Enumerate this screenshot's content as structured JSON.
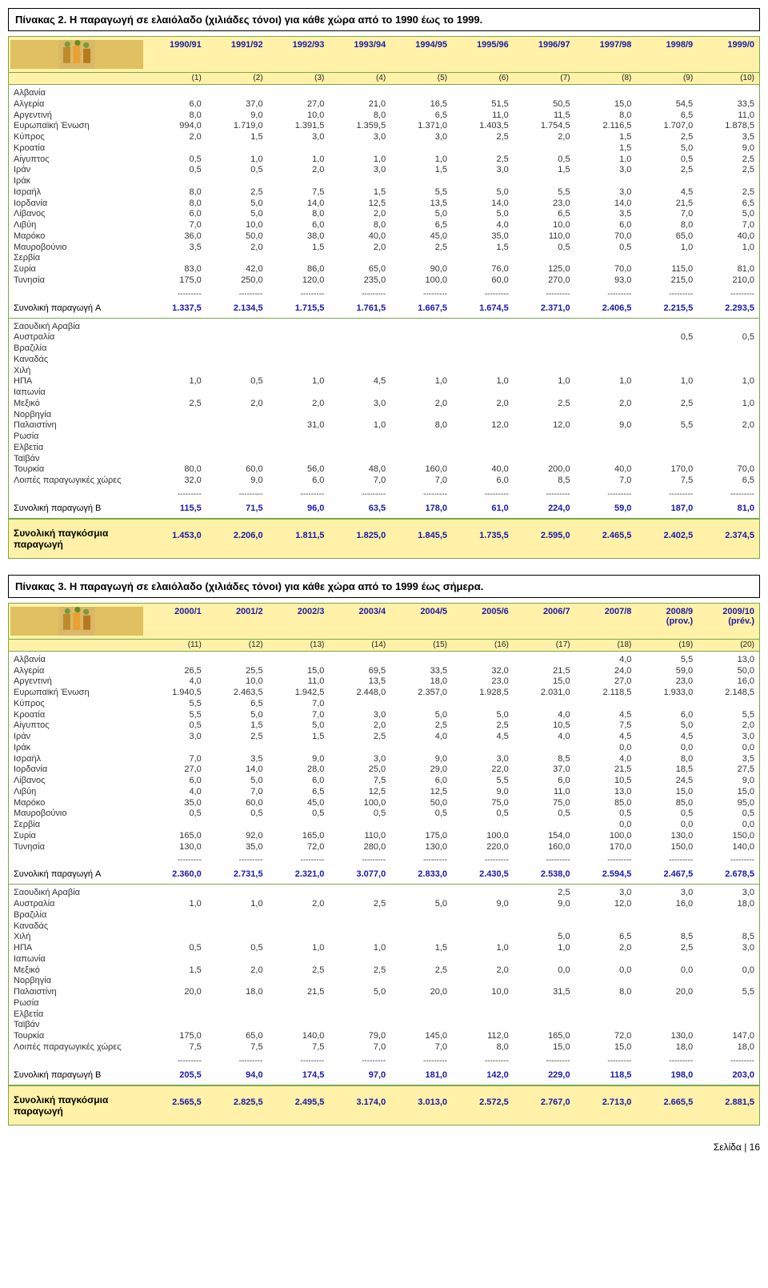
{
  "colors": {
    "header_bg": "#fff2a8",
    "border": "#7aa64a",
    "header_text": "#1a1aaa",
    "subtotal_text": "#1a1aaa"
  },
  "fonts": {
    "base_size": 11,
    "caption_size": 13
  },
  "page_footer": "Σελίδα | 16",
  "dash_str": "---------",
  "table1": {
    "caption": "Πίνακας 2. Η παραγωγή σε ελαιόλαδο (χιλιάδες τόνοι) για κάθε χώρα από το 1990 έως το 1999.",
    "years": [
      "1990/91",
      "1991/92",
      "1992/93",
      "1993/94",
      "1994/95",
      "1995/96",
      "1996/97",
      "1997/98",
      "1998/9",
      "1999/0"
    ],
    "indices": [
      "(1)",
      "(2)",
      "(3)",
      "(4)",
      "(5)",
      "(6)",
      "(7)",
      "(8)",
      "(9)",
      "(10)"
    ],
    "sectionA": [
      {
        "label": "Αλβανία",
        "vals": [
          "",
          "",
          "",
          "",
          "",
          "",
          "",
          "",
          "",
          ""
        ]
      },
      {
        "label": "Αλγερία",
        "vals": [
          "6,0",
          "37,0",
          "27,0",
          "21,0",
          "16,5",
          "51,5",
          "50,5",
          "15,0",
          "54,5",
          "33,5"
        ]
      },
      {
        "label": "Αργεντινή",
        "vals": [
          "8,0",
          "9,0",
          "10,0",
          "8,0",
          "6,5",
          "11,0",
          "11,5",
          "8,0",
          "6,5",
          "11,0"
        ]
      },
      {
        "label": "Ευρωπαϊκή Ένωση",
        "vals": [
          "994,0",
          "1.719,0",
          "1.391,5",
          "1.359,5",
          "1.371,0",
          "1.403,5",
          "1.754,5",
          "2.116,5",
          "1.707,0",
          "1.878,5"
        ]
      },
      {
        "label": "Κύπρος",
        "vals": [
          "2,0",
          "1,5",
          "3,0",
          "3,0",
          "3,0",
          "2,5",
          "2,0",
          "1,5",
          "2,5",
          "3,5"
        ]
      },
      {
        "label": "Κροατία",
        "vals": [
          "",
          "",
          "",
          "",
          "",
          "",
          "",
          "1,5",
          "5,0",
          "9,0"
        ]
      },
      {
        "label": "Αίγυπτος",
        "vals": [
          "0,5",
          "1,0",
          "1,0",
          "1,0",
          "1,0",
          "2,5",
          "0,5",
          "1,0",
          "0,5",
          "2,5"
        ]
      },
      {
        "label": "Ιράν",
        "vals": [
          "0,5",
          "0,5",
          "2,0",
          "3,0",
          "1,5",
          "3,0",
          "1,5",
          "3,0",
          "2,5",
          "2,5"
        ]
      },
      {
        "label": "Ιράκ",
        "vals": [
          "",
          "",
          "",
          "",
          "",
          "",
          "",
          "",
          "",
          ""
        ]
      },
      {
        "label": "Ισραήλ",
        "vals": [
          "8,0",
          "2,5",
          "7,5",
          "1,5",
          "5,5",
          "5,0",
          "5,5",
          "3,0",
          "4,5",
          "2,5"
        ]
      },
      {
        "label": "Ιορδανία",
        "vals": [
          "8,0",
          "5,0",
          "14,0",
          "12,5",
          "13,5",
          "14,0",
          "23,0",
          "14,0",
          "21,5",
          "6,5"
        ]
      },
      {
        "label": "Λίβανος",
        "vals": [
          "6,0",
          "5,0",
          "8,0",
          "2,0",
          "5,0",
          "5,0",
          "6,5",
          "3,5",
          "7,0",
          "5,0"
        ]
      },
      {
        "label": "Λιβύη",
        "vals": [
          "7,0",
          "10,0",
          "6,0",
          "8,0",
          "6,5",
          "4,0",
          "10,0",
          "6,0",
          "8,0",
          "7,0"
        ]
      },
      {
        "label": "Μαρόκο",
        "vals": [
          "36,0",
          "50,0",
          "38,0",
          "40,0",
          "45,0",
          "35,0",
          "110,0",
          "70,0",
          "65,0",
          "40,0"
        ]
      },
      {
        "label": "Μαυροβούνιο",
        "vals": [
          "3,5",
          "2,0",
          "1,5",
          "2,0",
          "2,5",
          "1,5",
          "0,5",
          "0,5",
          "1,0",
          "1,0"
        ]
      },
      {
        "label": "Σερβία",
        "vals": [
          "",
          "",
          "",
          "",
          "",
          "",
          "",
          "",
          "",
          ""
        ]
      },
      {
        "label": "Συρία",
        "vals": [
          "83,0",
          "42,0",
          "86,0",
          "65,0",
          "90,0",
          "76,0",
          "125,0",
          "70,0",
          "115,0",
          "81,0"
        ]
      },
      {
        "label": "Τυνησία",
        "vals": [
          "175,0",
          "250,0",
          "120,0",
          "235,0",
          "100,0",
          "60,0",
          "270,0",
          "93,0",
          "215,0",
          "210,0"
        ]
      }
    ],
    "subtotalA_label": "Συνολική παραγωγή A",
    "subtotalA": [
      "1.337,5",
      "2.134,5",
      "1.715,5",
      "1.761,5",
      "1.667,5",
      "1.674,5",
      "2.371,0",
      "2.406,5",
      "2.215,5",
      "2.293,5"
    ],
    "sectionB": [
      {
        "label": "Σαουδική Αραβία",
        "vals": [
          "",
          "",
          "",
          "",
          "",
          "",
          "",
          "",
          "",
          ""
        ]
      },
      {
        "label": "Αυστραλία",
        "vals": [
          "",
          "",
          "",
          "",
          "",
          "",
          "",
          "",
          "0,5",
          "0,5"
        ]
      },
      {
        "label": "Βραζιλία",
        "vals": [
          "",
          "",
          "",
          "",
          "",
          "",
          "",
          "",
          "",
          ""
        ]
      },
      {
        "label": "Καναδάς",
        "vals": [
          "",
          "",
          "",
          "",
          "",
          "",
          "",
          "",
          "",
          ""
        ]
      },
      {
        "label": "Χιλή",
        "vals": [
          "",
          "",
          "",
          "",
          "",
          "",
          "",
          "",
          "",
          ""
        ]
      },
      {
        "label": "ΗΠΑ",
        "vals": [
          "1,0",
          "0,5",
          "1,0",
          "4,5",
          "1,0",
          "1,0",
          "1,0",
          "1,0",
          "1,0",
          "1,0"
        ]
      },
      {
        "label": "Ιαπωνία",
        "vals": [
          "",
          "",
          "",
          "",
          "",
          "",
          "",
          "",
          "",
          ""
        ]
      },
      {
        "label": "Μεξικό",
        "vals": [
          "2,5",
          "2,0",
          "2,0",
          "3,0",
          "2,0",
          "2,0",
          "2,5",
          "2,0",
          "2,5",
          "1,0"
        ]
      },
      {
        "label": "Νορβηγία",
        "vals": [
          "",
          "",
          "",
          "",
          "",
          "",
          "",
          "",
          "",
          ""
        ]
      },
      {
        "label": "Παλαιστίνη",
        "vals": [
          "",
          "",
          "31,0",
          "1,0",
          "8,0",
          "12,0",
          "12,0",
          "9,0",
          "5,5",
          "2,0"
        ]
      },
      {
        "label": "Ρωσία",
        "vals": [
          "",
          "",
          "",
          "",
          "",
          "",
          "",
          "",
          "",
          ""
        ]
      },
      {
        "label": "Ελβετία",
        "vals": [
          "",
          "",
          "",
          "",
          "",
          "",
          "",
          "",
          "",
          ""
        ]
      },
      {
        "label": "Ταϊβάν",
        "vals": [
          "",
          "",
          "",
          "",
          "",
          "",
          "",
          "",
          "",
          ""
        ]
      },
      {
        "label": "Τουρκία",
        "vals": [
          "80,0",
          "60,0",
          "56,0",
          "48,0",
          "160,0",
          "40,0",
          "200,0",
          "40,0",
          "170,0",
          "70,0"
        ]
      },
      {
        "label": "Λοιπές παραγωγικές χώρες",
        "vals": [
          "32,0",
          "9,0",
          "6,0",
          "7,0",
          "7,0",
          "6,0",
          "8,5",
          "7,0",
          "7,5",
          "6,5"
        ]
      }
    ],
    "subtotalB_label": "Συνολική παραγωγή B",
    "subtotalB": [
      "115,5",
      "71,5",
      "96,0",
      "63,5",
      "178,0",
      "61,0",
      "224,0",
      "59,0",
      "187,0",
      "81,0"
    ],
    "grand_label": "Συνολική παγκόσμια παραγωγή",
    "grand": [
      "1.453,0",
      "2.206,0",
      "1.811,5",
      "1.825,0",
      "1.845,5",
      "1.735,5",
      "2.595,0",
      "2.465,5",
      "2.402,5",
      "2.374,5"
    ]
  },
  "table2": {
    "caption": "Πίνακας 3. Η παραγωγή σε ελαιόλαδο (χιλιάδες τόνοι) για κάθε χώρα από το 1999 έως σήμερα.",
    "years": [
      "2000/1",
      "2001/2",
      "2002/3",
      "2003/4",
      "2004/5",
      "2005/6",
      "2006/7",
      "2007/8",
      "2008/9 (prov.)",
      "2009/10 (prév.)"
    ],
    "indices": [
      "(11)",
      "(12)",
      "(13)",
      "(14)",
      "(15)",
      "(16)",
      "(17)",
      "(18)",
      "(19)",
      "(20)"
    ],
    "sectionA": [
      {
        "label": "Αλβανία",
        "vals": [
          "",
          "",
          "",
          "",
          "",
          "",
          "",
          "4,0",
          "5,5",
          "13,0"
        ]
      },
      {
        "label": "Αλγερία",
        "vals": [
          "26,5",
          "25,5",
          "15,0",
          "69,5",
          "33,5",
          "32,0",
          "21,5",
          "24,0",
          "59,0",
          "50,0"
        ]
      },
      {
        "label": "Αργεντινή",
        "vals": [
          "4,0",
          "10,0",
          "11,0",
          "13,5",
          "18,0",
          "23,0",
          "15,0",
          "27,0",
          "23,0",
          "16,0"
        ]
      },
      {
        "label": "Ευρωπαϊκή Ένωση",
        "vals": [
          "1.940,5",
          "2.463,5",
          "1.942,5",
          "2.448,0",
          "2.357,0",
          "1.928,5",
          "2.031,0",
          "2.118,5",
          "1.933,0",
          "2.148,5"
        ]
      },
      {
        "label": "Κύπρος",
        "vals": [
          "5,5",
          "6,5",
          "7,0",
          "",
          "",
          "",
          "",
          "",
          "",
          ""
        ]
      },
      {
        "label": "Κροατία",
        "vals": [
          "5,5",
          "5,0",
          "7,0",
          "3,0",
          "5,0",
          "5,0",
          "4,0",
          "4,5",
          "6,0",
          "5,5"
        ]
      },
      {
        "label": "Αίγυπτος",
        "vals": [
          "0,5",
          "1,5",
          "5,0",
          "2,0",
          "2,5",
          "2,5",
          "10,5",
          "7,5",
          "5,0",
          "2,0"
        ]
      },
      {
        "label": "Ιράν",
        "vals": [
          "3,0",
          "2,5",
          "1,5",
          "2,5",
          "4,0",
          "4,5",
          "4,0",
          "4,5",
          "4,5",
          "3,0"
        ]
      },
      {
        "label": "Ιράκ",
        "vals": [
          "",
          "",
          "",
          "",
          "",
          "",
          "",
          "0,0",
          "0,0",
          "0,0"
        ]
      },
      {
        "label": "Ισραήλ",
        "vals": [
          "7,0",
          "3,5",
          "9,0",
          "3,0",
          "9,0",
          "3,0",
          "8,5",
          "4,0",
          "8,0",
          "3,5"
        ]
      },
      {
        "label": "Ιορδανία",
        "vals": [
          "27,0",
          "14,0",
          "28,0",
          "25,0",
          "29,0",
          "22,0",
          "37,0",
          "21,5",
          "18,5",
          "27,5"
        ]
      },
      {
        "label": "Λίβανος",
        "vals": [
          "6,0",
          "5,0",
          "6,0",
          "7,5",
          "6,0",
          "5,5",
          "6,0",
          "10,5",
          "24,5",
          "9,0"
        ]
      },
      {
        "label": "Λιβύη",
        "vals": [
          "4,0",
          "7,0",
          "6,5",
          "12,5",
          "12,5",
          "9,0",
          "11,0",
          "13,0",
          "15,0",
          "15,0"
        ]
      },
      {
        "label": "Μαρόκο",
        "vals": [
          "35,0",
          "60,0",
          "45,0",
          "100,0",
          "50,0",
          "75,0",
          "75,0",
          "85,0",
          "85,0",
          "95,0"
        ]
      },
      {
        "label": "Μαυροβούνιο",
        "vals": [
          "0,5",
          "0,5",
          "0,5",
          "0,5",
          "0,5",
          "0,5",
          "0,5",
          "0,5",
          "0,5",
          "0,5"
        ]
      },
      {
        "label": "Σερβία",
        "vals": [
          "",
          "",
          "",
          "",
          "",
          "",
          "",
          "0,0",
          "0,0",
          "0,0"
        ]
      },
      {
        "label": "Συρία",
        "vals": [
          "165,0",
          "92,0",
          "165,0",
          "110,0",
          "175,0",
          "100,0",
          "154,0",
          "100,0",
          "130,0",
          "150,0"
        ]
      },
      {
        "label": "Τυνησία",
        "vals": [
          "130,0",
          "35,0",
          "72,0",
          "280,0",
          "130,0",
          "220,0",
          "160,0",
          "170,0",
          "150,0",
          "140,0"
        ]
      }
    ],
    "subtotalA_label": "Συνολική παραγωγή A",
    "subtotalA": [
      "2.360,0",
      "2.731,5",
      "2.321,0",
      "3.077,0",
      "2.833,0",
      "2.430,5",
      "2.538,0",
      "2.594,5",
      "2.467,5",
      "2.678,5"
    ],
    "sectionB": [
      {
        "label": "Σαουδική Αραβία",
        "vals": [
          "",
          "",
          "",
          "",
          "",
          "",
          "2,5",
          "3,0",
          "3,0",
          "3,0"
        ]
      },
      {
        "label": "Αυστραλία",
        "vals": [
          "1,0",
          "1,0",
          "2,0",
          "2,5",
          "5,0",
          "9,0",
          "9,0",
          "12,0",
          "16,0",
          "18,0"
        ]
      },
      {
        "label": "Βραζιλία",
        "vals": [
          "",
          "",
          "",
          "",
          "",
          "",
          "",
          "",
          "",
          ""
        ]
      },
      {
        "label": "Καναδάς",
        "vals": [
          "",
          "",
          "",
          "",
          "",
          "",
          "",
          "",
          "",
          ""
        ]
      },
      {
        "label": "Χιλή",
        "vals": [
          "",
          "",
          "",
          "",
          "",
          "",
          "5,0",
          "6,5",
          "8,5",
          "8,5"
        ]
      },
      {
        "label": "ΗΠΑ",
        "vals": [
          "0,5",
          "0,5",
          "1,0",
          "1,0",
          "1,5",
          "1,0",
          "1,0",
          "2,0",
          "2,5",
          "3,0"
        ]
      },
      {
        "label": "Ιαπωνία",
        "vals": [
          "",
          "",
          "",
          "",
          "",
          "",
          "",
          "",
          "",
          ""
        ]
      },
      {
        "label": "Μεξικό",
        "vals": [
          "1,5",
          "2,0",
          "2,5",
          "2,5",
          "2,5",
          "2,0",
          "0,0",
          "0,0",
          "0,0",
          "0,0"
        ]
      },
      {
        "label": "Νορβηγία",
        "vals": [
          "",
          "",
          "",
          "",
          "",
          "",
          "",
          "",
          "",
          ""
        ]
      },
      {
        "label": "Παλαιστίνη",
        "vals": [
          "20,0",
          "18,0",
          "21,5",
          "5,0",
          "20,0",
          "10,0",
          "31,5",
          "8,0",
          "20,0",
          "5,5"
        ]
      },
      {
        "label": "Ρωσία",
        "vals": [
          "",
          "",
          "",
          "",
          "",
          "",
          "",
          "",
          "",
          ""
        ]
      },
      {
        "label": "Ελβετία",
        "vals": [
          "",
          "",
          "",
          "",
          "",
          "",
          "",
          "",
          "",
          ""
        ]
      },
      {
        "label": "Ταϊβάν",
        "vals": [
          "",
          "",
          "",
          "",
          "",
          "",
          "",
          "",
          "",
          ""
        ]
      },
      {
        "label": "Τουρκία",
        "vals": [
          "175,0",
          "65,0",
          "140,0",
          "79,0",
          "145,0",
          "112,0",
          "165,0",
          "72,0",
          "130,0",
          "147,0"
        ]
      },
      {
        "label": "Λοιπές παραγωγικές χώρες",
        "vals": [
          "7,5",
          "7,5",
          "7,5",
          "7,0",
          "7,0",
          "8,0",
          "15,0",
          "15,0",
          "18,0",
          "18,0"
        ]
      }
    ],
    "subtotalB_label": "Συνολική παραγωγή B",
    "subtotalB": [
      "205,5",
      "94,0",
      "174,5",
      "97,0",
      "181,0",
      "142,0",
      "229,0",
      "118,5",
      "198,0",
      "203,0"
    ],
    "grand_label": "Συνολική παγκόσμια παραγωγή",
    "grand": [
      "2.565,5",
      "2.825,5",
      "2.495,5",
      "3.174,0",
      "3.013,0",
      "2.572,5",
      "2.767,0",
      "2.713,0",
      "2.665,5",
      "2.881,5"
    ]
  }
}
